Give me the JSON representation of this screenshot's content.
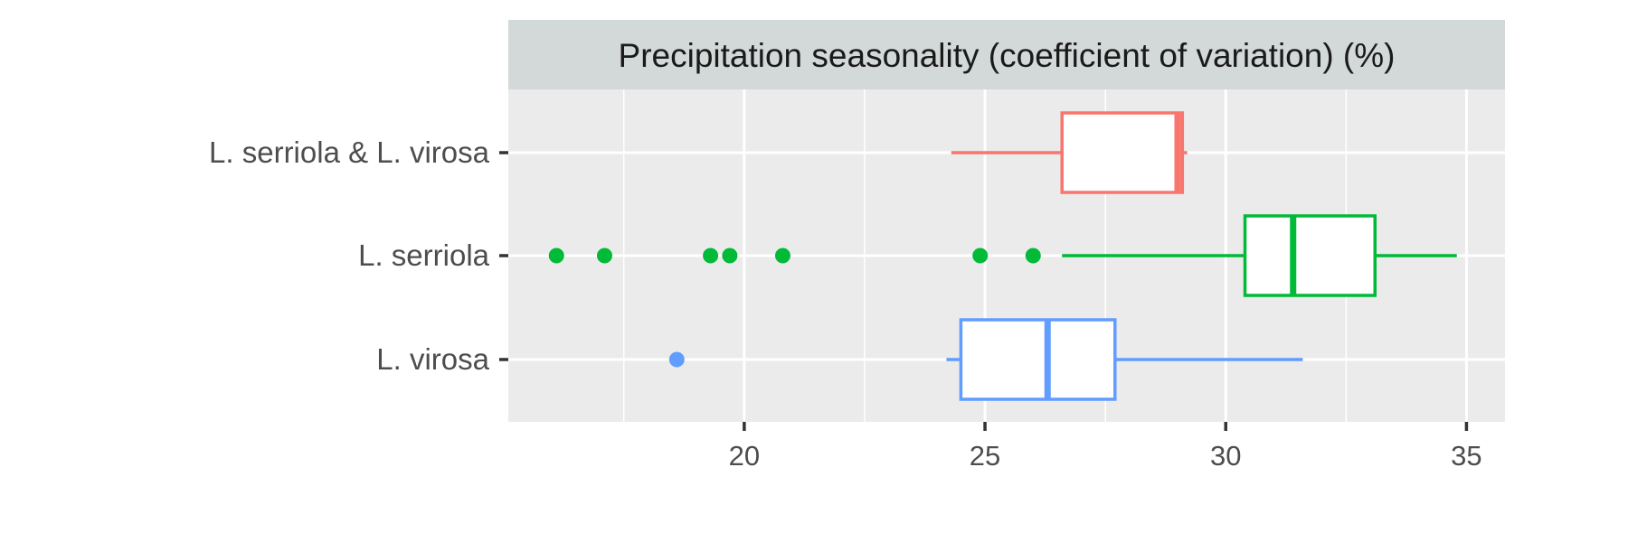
{
  "chart_data": {
    "type": "boxplot",
    "orientation": "horizontal",
    "title": "Precipitation seasonality (coefficient of variation) (%)",
    "xlabel": "",
    "ylabel": "",
    "xlim": [
      15.1,
      35.8
    ],
    "x_ticks": [
      20,
      25,
      30,
      35
    ],
    "x_minor_ticks": [
      17.5,
      22.5,
      27.5,
      32.5
    ],
    "grid": true,
    "legend": "none",
    "categories": [
      "L. serriola & L. virosa",
      "L. serriola",
      "L. virosa"
    ],
    "series": [
      {
        "category": "L. serriola & L. virosa",
        "color": "#F8766D",
        "whisker_low": 24.3,
        "q1": 26.6,
        "median": 29.0,
        "q3": 29.1,
        "whisker_high": 29.2,
        "outliers": []
      },
      {
        "category": "L. serriola",
        "color": "#00BA38",
        "whisker_low": 26.6,
        "q1": 30.4,
        "median": 31.4,
        "q3": 33.1,
        "whisker_high": 34.8,
        "outliers": [
          16.1,
          17.1,
          19.3,
          19.7,
          20.8,
          24.9,
          26.0
        ]
      },
      {
        "category": "L. virosa",
        "color": "#619CFF",
        "whisker_low": 24.2,
        "q1": 24.5,
        "median": 26.3,
        "q3": 27.7,
        "whisker_high": 31.6,
        "outliers": [
          18.6
        ]
      }
    ]
  },
  "colors": {
    "panel_background": "#EBEBEB",
    "strip_background": "#D3D9D8",
    "gridline": "#FFFFFF",
    "tick_text": "#4D4D4D",
    "tick_mark": "#333333"
  }
}
